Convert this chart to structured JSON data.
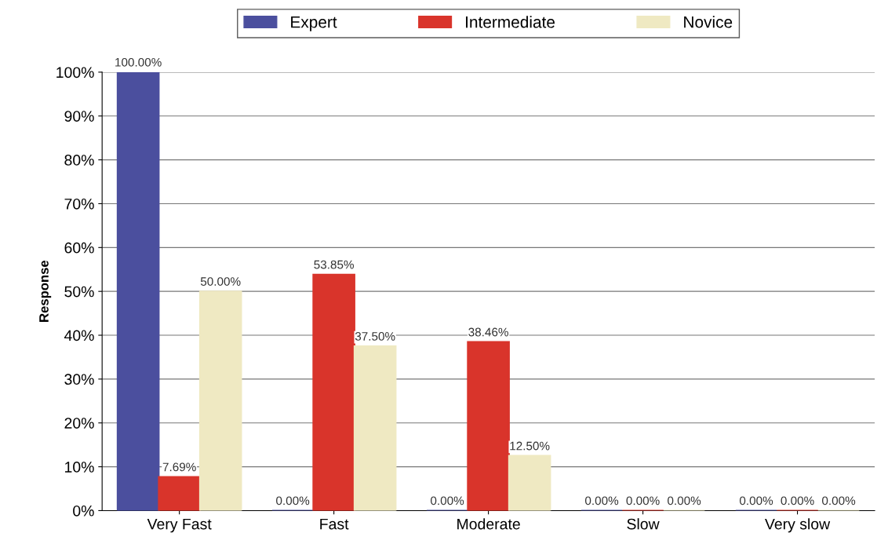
{
  "chart_data": {
    "type": "bar",
    "ylabel": "Response",
    "categories": [
      "Very Fast",
      "Fast",
      "Moderate",
      "Slow",
      "Very slow"
    ],
    "series": [
      {
        "name": "Expert",
        "color": "#4b4f9e",
        "values": [
          100,
          0,
          0,
          0,
          0
        ],
        "value_labels": [
          "100.00%",
          "0.00%",
          "0.00%",
          "0.00%",
          "0.00%"
        ]
      },
      {
        "name": "Intermediate",
        "color": "#d9342b",
        "values": [
          7.69,
          53.85,
          38.46,
          0,
          0
        ],
        "value_labels": [
          "7.69%",
          "53.85%",
          "38.46%",
          "0.00%",
          "0.00%"
        ]
      },
      {
        "name": "Novice",
        "color": "#efe9c2",
        "values": [
          50,
          37.5,
          12.5,
          0,
          0
        ],
        "value_labels": [
          "50.00%",
          "37.50%",
          "12.50%",
          "0.00%",
          "0.00%"
        ]
      }
    ],
    "ylim": [
      0,
      100
    ],
    "yticks": [
      {
        "value": 0,
        "label": "0%"
      },
      {
        "value": 10,
        "label": "10%"
      },
      {
        "value": 20,
        "label": "20%"
      },
      {
        "value": 30,
        "label": "30%"
      },
      {
        "value": 40,
        "label": "40%"
      },
      {
        "value": 50,
        "label": "50%"
      },
      {
        "value": 60,
        "label": "60%"
      },
      {
        "value": 70,
        "label": "70%"
      },
      {
        "value": 80,
        "label": "80%"
      },
      {
        "value": 90,
        "label": "90%"
      },
      {
        "value": 100,
        "label": "100%"
      }
    ],
    "grid": "y",
    "legend": "top"
  }
}
